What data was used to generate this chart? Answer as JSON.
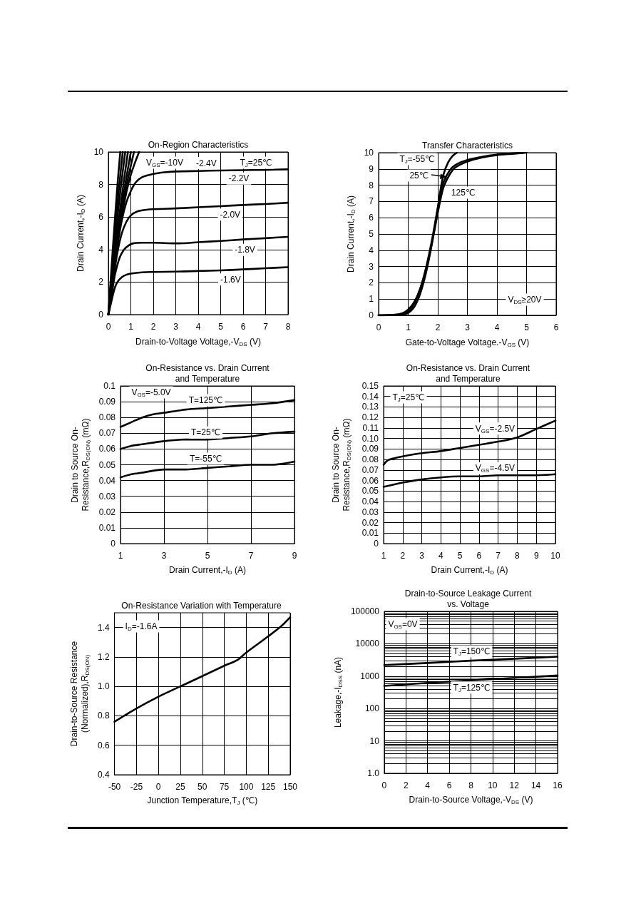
{
  "chart_data": [
    {
      "type": "line",
      "title": "On-Region Characteristics",
      "xlabel": "Drain-to-Voltage Voltage,-V$_{DS}$ (V)",
      "ylabel": "Drain Current,-I$_{D}$ (A)",
      "xlim": [
        0,
        8
      ],
      "xticks": [
        0,
        1,
        2,
        3,
        4,
        5,
        6,
        7,
        8
      ],
      "ylim": [
        0,
        10
      ],
      "yticks": [
        0,
        2,
        4,
        6,
        8,
        10
      ],
      "grid": true,
      "series": [
        {
          "color": "#000000",
          "x": [
            0,
            0.1,
            0.2,
            0.3,
            0.4,
            0.6,
            0.8,
            1,
            1.5,
            2,
            3,
            4,
            5,
            6,
            7,
            8
          ],
          "values": [
            0,
            0.6,
            1.2,
            1.7,
            2.0,
            2.3,
            2.45,
            2.52,
            2.6,
            2.62,
            2.64,
            2.68,
            2.72,
            2.78,
            2.85,
            2.92
          ]
        },
        {
          "color": "#000000",
          "x": [
            0,
            0.1,
            0.2,
            0.3,
            0.5,
            0.7,
            0.9,
            1.1,
            1.5,
            2,
            3,
            3.5,
            4,
            5,
            6,
            7,
            8
          ],
          "values": [
            0,
            0.8,
            1.7,
            2.5,
            3.5,
            4.0,
            4.25,
            4.38,
            4.42,
            4.42,
            4.38,
            4.4,
            4.45,
            4.53,
            4.62,
            4.7,
            4.78
          ]
        },
        {
          "color": "#000000",
          "x": [
            0,
            0.2,
            0.4,
            0.6,
            0.8,
            1,
            1.3,
            1.7,
            2,
            3,
            4,
            5,
            6,
            7,
            8
          ],
          "values": [
            0,
            2.0,
            3.8,
            5.0,
            5.7,
            6.1,
            6.35,
            6.45,
            6.48,
            6.53,
            6.6,
            6.67,
            6.74,
            6.8,
            6.88
          ]
        },
        {
          "color": "#000000",
          "x": [
            0,
            0.2,
            0.4,
            0.6,
            0.8,
            1,
            1.2,
            1.5,
            2,
            2.5,
            3,
            4,
            5,
            6,
            7,
            8
          ],
          "values": [
            0,
            2.2,
            4.2,
            5.8,
            6.9,
            7.6,
            8.1,
            8.45,
            8.65,
            8.75,
            8.8,
            8.83,
            8.86,
            8.88,
            8.9,
            8.93
          ]
        },
        {
          "color": "#000000",
          "x": [
            0,
            0.2,
            0.4,
            0.6,
            0.8,
            1,
            1.2,
            1.37
          ],
          "values": [
            0,
            2.3,
            4.4,
            6.1,
            7.5,
            8.6,
            9.4,
            10
          ]
        },
        {
          "color": "#000000",
          "x": [
            0,
            0.2,
            0.4,
            0.6,
            0.8,
            1.14
          ],
          "values": [
            0,
            2.4,
            4.5,
            6.4,
            7.9,
            10
          ]
        },
        {
          "color": "#000000",
          "x": [
            0,
            0.3,
            0.6,
            1.0
          ],
          "values": [
            0,
            3.6,
            6.7,
            10
          ]
        },
        {
          "color": "#000000",
          "x": [
            0,
            0.3,
            0.6,
            0.87
          ],
          "values": [
            0,
            4.0,
            7.3,
            10
          ]
        },
        {
          "color": "#000000",
          "x": [
            0,
            0.25,
            0.5,
            0.75
          ],
          "values": [
            0,
            3.9,
            7.2,
            10
          ]
        },
        {
          "color": "#000000",
          "x": [
            0,
            0.2,
            0.4,
            0.64
          ],
          "values": [
            0,
            3.5,
            6.8,
            10
          ]
        },
        {
          "color": "#000000",
          "x": [
            0,
            0.2,
            0.4,
            0.53
          ],
          "values": [
            0,
            4.1,
            7.9,
            10
          ]
        }
      ],
      "annotations": [
        "V$_{GS}$=-10V",
        {
          "text": "-2.4V",
          "x": 4.36,
          "y": 9.32
        },
        "T$_{J}$=25℃",
        {
          "text": "-2.2V",
          "x": 5.81,
          "y": 8.37
        },
        {
          "text": "-2.0V",
          "x": 5.42,
          "y": 6.15
        },
        {
          "text": "-1.8V",
          "x": 6.08,
          "y": 3.98
        },
        {
          "text": "-1.6V",
          "x": 5.44,
          "y": 2.16
        }
      ]
    },
    {
      "type": "line",
      "title": "Transfer Characteristics",
      "xlabel": "Gate-to-Voltage Voltage.-V$_{GS}$ (V)",
      "ylabel": "Drain Current,-I$_{D}$ (A)",
      "xlim": [
        0,
        6
      ],
      "xticks": [
        0,
        1,
        2,
        3,
        4,
        5,
        6
      ],
      "ylim": [
        0,
        10
      ],
      "yticks": [
        0,
        1,
        2,
        3,
        4,
        5,
        6,
        7,
        8,
        9,
        10
      ],
      "grid": true,
      "series": [
        {
          "color": "#000000",
          "x": [
            0,
            0.5,
            0.8,
            1.0,
            1.2,
            1.4,
            1.6,
            1.8,
            2.0,
            2.1,
            2.2,
            2.35,
            2.5,
            2.65
          ],
          "values": [
            0,
            0.02,
            0.05,
            0.15,
            0.5,
            1.3,
            2.6,
            4.4,
            6.6,
            7.8,
            8.7,
            9.4,
            9.8,
            10
          ]
        },
        {
          "color": "#000000",
          "x": [
            0,
            0.5,
            0.8,
            1.0,
            1.2,
            1.4,
            1.6,
            1.8,
            2.0,
            2.1,
            2.2,
            2.4,
            2.6,
            3.0,
            3.5,
            4.0,
            4.5,
            4.9
          ],
          "values": [
            0,
            0.02,
            0.08,
            0.25,
            0.7,
            1.6,
            2.9,
            4.6,
            6.6,
            7.5,
            8.2,
            8.9,
            9.25,
            9.55,
            9.75,
            9.88,
            9.95,
            10
          ]
        },
        {
          "color": "#000000",
          "x": [
            0,
            0.5,
            0.8,
            1.0,
            1.2,
            1.4,
            1.6,
            1.8,
            2.0,
            2.1,
            2.2,
            2.4,
            2.6,
            3.0,
            3.5,
            4.0,
            4.5,
            5.0
          ],
          "values": [
            0,
            0.03,
            0.12,
            0.35,
            0.8,
            1.6,
            2.8,
            4.4,
            6.3,
            7.2,
            7.9,
            8.65,
            9.1,
            9.45,
            9.7,
            9.85,
            9.93,
            10
          ]
        }
      ],
      "annotations": [
        "T$_{J}$=-55℃",
        {
          "text": "25℃",
          "x": 1.37,
          "y": 8.6
        },
        {
          "text": "125℃",
          "x": 2.86,
          "y": 7.54
        },
        "V$_{DS}$≥20V"
      ]
    },
    {
      "type": "line",
      "title": "On-Resistance vs. Drain Current\nand Temperature",
      "xlabel": "Drain Current,-I$_{D}$ (A)",
      "ylabel": "Drain to Source On-\nResistance,R$_{DS(ON)}$ (mΩ)",
      "xlim": [
        1,
        9
      ],
      "xticks": [
        1,
        3,
        5,
        7,
        9
      ],
      "ylim": [
        0,
        0.1
      ],
      "yticks": [
        0,
        0.01,
        0.02,
        0.03,
        0.04,
        0.05,
        0.06,
        0.07,
        0.08,
        0.09,
        0.1
      ],
      "grid": true,
      "series": [
        {
          "name": "T=125℃",
          "color": "#000000",
          "x": [
            1,
            1.5,
            2,
            2.5,
            3,
            4,
            5,
            6,
            7,
            8,
            9
          ],
          "values": [
            0.074,
            0.077,
            0.08,
            0.082,
            0.083,
            0.085,
            0.086,
            0.087,
            0.088,
            0.089,
            0.091
          ]
        },
        {
          "name": "T=25℃",
          "color": "#000000",
          "x": [
            1,
            1.5,
            2,
            3,
            4,
            5,
            6,
            7,
            8,
            9
          ],
          "values": [
            0.06,
            0.062,
            0.063,
            0.065,
            0.066,
            0.066,
            0.067,
            0.068,
            0.07,
            0.071
          ]
        },
        {
          "name": "T=-55℃",
          "color": "#000000",
          "x": [
            1,
            1.5,
            2,
            3,
            4,
            5,
            6,
            7,
            8,
            9
          ],
          "values": [
            0.042,
            0.044,
            0.045,
            0.047,
            0.047,
            0.048,
            0.049,
            0.05,
            0.05,
            0.052
          ]
        }
      ],
      "annotations": [
        "V$_{GS}$=-5.0V"
      ]
    },
    {
      "type": "line",
      "title": "On-Resistance vs. Drain Current\nand Temperature",
      "xlabel": "Drain Current,-I$_{D}$ (A)",
      "ylabel": "Drain to Source On-\nResistance,R$_{DS(ON)}$ (mΩ)",
      "xlim": [
        1,
        10
      ],
      "xticks": [
        1,
        2,
        3,
        4,
        5,
        6,
        7,
        8,
        9,
        10
      ],
      "ylim": [
        0,
        0.15
      ],
      "yticks": [
        0,
        0.01,
        0.02,
        0.03,
        0.04,
        0.05,
        0.06,
        0.07,
        0.08,
        0.09,
        {
          "value": 0.1,
          "label": "0.10"
        },
        0.11,
        0.12,
        0.13,
        0.14,
        0.15
      ],
      "grid": true,
      "series": [
        {
          "name": "V$_{GS}$=-2.5V",
          "color": "#000000",
          "x": [
            1,
            1.2,
            1.5,
            2,
            3,
            4,
            5,
            6,
            7,
            8,
            9,
            10
          ],
          "values": [
            0.075,
            0.079,
            0.081,
            0.083,
            0.086,
            0.088,
            0.091,
            0.094,
            0.097,
            0.101,
            0.109,
            0.117
          ]
        },
        {
          "name": "V$_{GS}$=-4.5V",
          "color": "#000000",
          "x": [
            1,
            1.5,
            2,
            3,
            4,
            5,
            6,
            7,
            8,
            9,
            10
          ],
          "values": [
            0.054,
            0.056,
            0.058,
            0.061,
            0.063,
            0.064,
            0.064,
            0.065,
            0.065,
            0.065,
            0.066
          ]
        }
      ],
      "annotations": [
        "T$_{J}$=25℃"
      ]
    },
    {
      "type": "line",
      "title": "On-Resistance Variation with Temperature",
      "xlabel": "Junction Temperature,T$_{J}$ (℃)",
      "ylabel": "Drain-to-Source Resistance\n(Normalized),R$_{DS(ON)}$",
      "xlim": [
        -50,
        150
      ],
      "xticks": [
        -50,
        -25,
        0,
        25,
        50,
        75,
        100,
        125,
        150
      ],
      "ylim": [
        0.4,
        1.5
      ],
      "yticks": [
        0.4,
        0.6,
        0.8,
        {
          "value": 1,
          "label": "1.0"
        },
        1.2,
        1.4
      ],
      "grid": true,
      "series": [
        {
          "color": "#000000",
          "x": [
            -50,
            -25,
            0,
            25,
            50,
            75,
            90,
            100,
            125,
            140,
            150
          ],
          "values": [
            0.76,
            0.85,
            0.93,
            1.0,
            1.07,
            1.14,
            1.18,
            1.23,
            1.34,
            1.41,
            1.47
          ]
        }
      ],
      "annotations": [
        "I$_{D}$=-1.6A"
      ]
    },
    {
      "type": "line",
      "title": "Drain-to-Source Leakage Current\nvs. Voltage",
      "xlabel": "Drain-to-Source Voltage,-V$_{DS}$ (V)",
      "ylabel": "Leakage,-I$_{DSS}$ (nA)",
      "log": "y",
      "xlim": [
        0,
        16
      ],
      "xticks": [
        0,
        2,
        4,
        6,
        8,
        10,
        12,
        14,
        16
      ],
      "ylim": [
        1,
        100000
      ],
      "yticks": [
        {
          "value": 1,
          "label": "1.0"
        },
        {
          "value": 2,
          "label": null
        },
        {
          "value": 3,
          "label": null
        },
        {
          "value": 4,
          "label": null
        },
        {
          "value": 5,
          "label": null
        },
        {
          "value": 6,
          "label": null
        },
        {
          "value": 7,
          "label": null
        },
        {
          "value": 8,
          "label": null
        },
        {
          "value": 9,
          "label": null
        },
        10,
        {
          "value": 20,
          "label": null
        },
        {
          "value": 30,
          "label": null
        },
        {
          "value": 40,
          "label": null
        },
        {
          "value": 50,
          "label": null
        },
        {
          "value": 60,
          "label": null
        },
        {
          "value": 70,
          "label": null
        },
        {
          "value": 80,
          "label": null
        },
        {
          "value": 90,
          "label": null
        },
        100,
        {
          "value": 200,
          "label": null
        },
        {
          "value": 300,
          "label": null
        },
        {
          "value": 400,
          "label": null
        },
        {
          "value": 500,
          "label": null
        },
        {
          "value": 600,
          "label": null
        },
        {
          "value": 700,
          "label": null
        },
        {
          "value": 800,
          "label": null
        },
        {
          "value": 900,
          "label": null
        },
        1000,
        {
          "value": 2000,
          "label": null
        },
        {
          "value": 3000,
          "label": null
        },
        {
          "value": 4000,
          "label": null
        },
        {
          "value": 5000,
          "label": null
        },
        {
          "value": 6000,
          "label": null
        },
        {
          "value": 7000,
          "label": null
        },
        {
          "value": 8000,
          "label": null
        },
        {
          "value": 9000,
          "label": null
        },
        10000,
        {
          "value": 20000,
          "label": null
        },
        {
          "value": 30000,
          "label": null
        },
        {
          "value": 40000,
          "label": null
        },
        {
          "value": 50000,
          "label": null
        },
        {
          "value": 60000,
          "label": null
        },
        {
          "value": 70000,
          "label": null
        },
        {
          "value": 80000,
          "label": null
        },
        {
          "value": 90000,
          "label": null
        },
        100000
      ],
      "grid": true,
      "series": [
        {
          "name": "T$_{J}$=150℃",
          "color": "#000000",
          "x": [
            0,
            4,
            8,
            12,
            16
          ],
          "values": [
            2200,
            2550,
            3000,
            3450,
            4000
          ]
        },
        {
          "name": "T$_{J}$=125℃",
          "color": "#000000",
          "x": [
            0,
            4,
            8,
            12,
            16
          ],
          "values": [
            500,
            620,
            740,
            880,
            1050
          ]
        }
      ],
      "annotations": [
        "V$_{GS}$=0V"
      ]
    }
  ]
}
